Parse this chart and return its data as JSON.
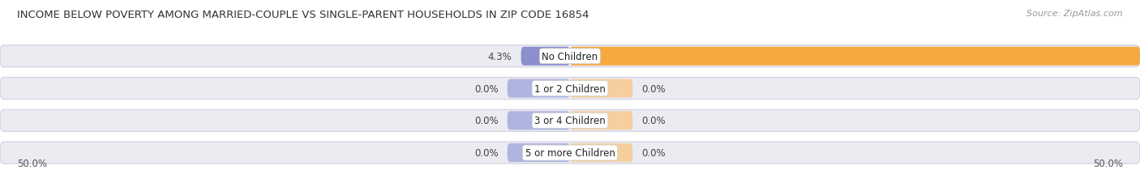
{
  "title": "INCOME BELOW POVERTY AMONG MARRIED-COUPLE VS SINGLE-PARENT HOUSEHOLDS IN ZIP CODE 16854",
  "source": "Source: ZipAtlas.com",
  "categories": [
    "No Children",
    "1 or 2 Children",
    "3 or 4 Children",
    "5 or more Children"
  ],
  "married_values": [
    4.3,
    0.0,
    0.0,
    0.0
  ],
  "single_values": [
    50.0,
    0.0,
    0.0,
    0.0
  ],
  "married_color": "#8b8fcc",
  "married_color_light": "#b0b4e0",
  "single_color": "#f5a940",
  "single_color_light": "#f5cfa0",
  "bar_bg_color": "#ebebf2",
  "bar_border_color": "#d0d0e0",
  "xlim": 50.0,
  "title_fontsize": 9.5,
  "source_fontsize": 8,
  "label_fontsize": 8.5,
  "category_fontsize": 8.5,
  "legend_fontsize": 8.5,
  "bar_height": 0.68,
  "zero_bar_width": 5.5,
  "background_color": "#ffffff",
  "axis_label_bottom_left": "50.0%",
  "axis_label_bottom_right": "50.0%"
}
